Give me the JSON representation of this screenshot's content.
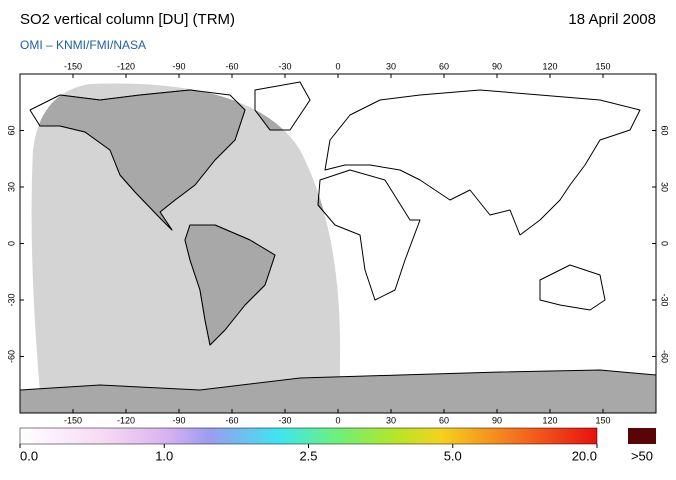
{
  "header": {
    "title": "SO2 vertical column [DU] (TRM)",
    "date": "18 April 2008",
    "subtitle": "OMI  –  KNMI/FMI/NASA"
  },
  "map": {
    "xlim": [
      -180,
      180
    ],
    "ylim": [
      -90,
      90
    ],
    "xticks": [
      -150,
      -120,
      -90,
      -60,
      -30,
      0,
      30,
      60,
      90,
      120,
      150
    ],
    "yticks": [
      60,
      30,
      0,
      -30,
      -60
    ]
  },
  "colorbar": {
    "ticks": [
      {
        "value": 0,
        "label": "0.0"
      },
      {
        "value": 1,
        "label": "1.0"
      },
      {
        "value": 2.5,
        "label": "2.5"
      },
      {
        "value": 5,
        "label": "5.0"
      },
      {
        "value": 20,
        "label": "20.0"
      }
    ],
    "overflow_label": ">50",
    "overflow_color": "#5a0505"
  }
}
